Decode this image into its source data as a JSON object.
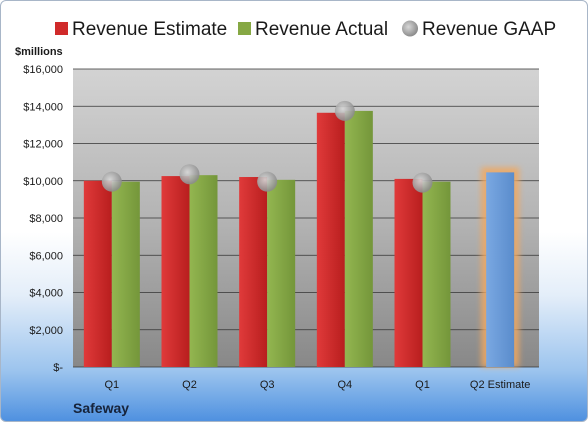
{
  "chart_data": {
    "type": "bar",
    "title": "",
    "y_unit_label": "$millions",
    "company": "Safeway",
    "categories": [
      "Q1",
      "Q2",
      "Q3",
      "Q4",
      "Q1",
      "Q2 Estimate"
    ],
    "series": [
      {
        "name": "Revenue Estimate",
        "marker": "bar",
        "color": "#d02a2a",
        "values": [
          10000,
          10250,
          10200,
          13650,
          10100,
          null
        ]
      },
      {
        "name": "Revenue Actual",
        "marker": "bar",
        "color": "#86a844",
        "values": [
          9950,
          10300,
          10050,
          13750,
          9950,
          10450
        ]
      },
      {
        "name": "Revenue GAAP",
        "marker": "circle",
        "color": "#a8a8a8",
        "values": [
          9950,
          10350,
          9950,
          13750,
          9900,
          null
        ]
      }
    ],
    "highlight": {
      "category_index": 5,
      "color": "#6a9ad8",
      "glow": "#f0a860"
    },
    "ylim": [
      0,
      16000
    ],
    "yticks": [
      0,
      2000,
      4000,
      6000,
      8000,
      10000,
      12000,
      14000,
      16000
    ],
    "ytick_labels": [
      "$-",
      "$2,000",
      "$4,000",
      "$6,000",
      "$8,000",
      "$10,000",
      "$12,000",
      "$14,000",
      "$16,000"
    ],
    "grid": true,
    "legend_position": "top"
  }
}
